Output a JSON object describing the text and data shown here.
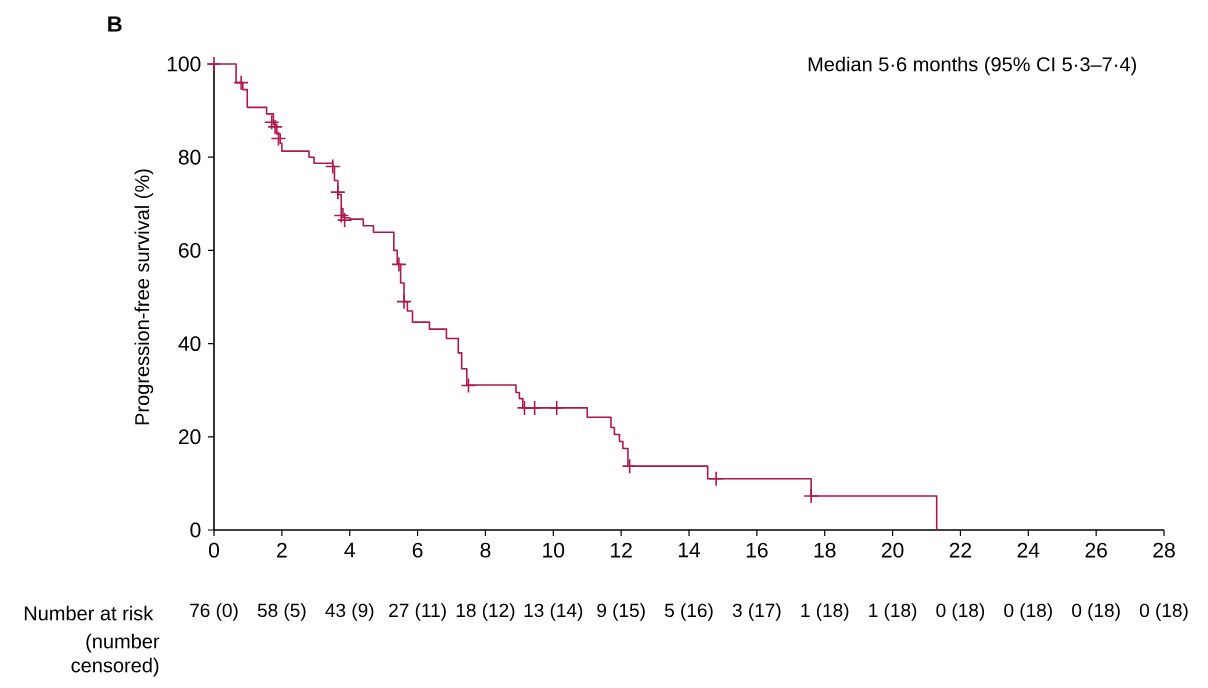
{
  "chart_data": {
    "type": "step",
    "title": "B",
    "ylabel": "Progression-free survival (%)",
    "annotations": [
      "Median 5·6 months (95% CI 5·3–7·4)",
      "Number at risk",
      "(number censored)",
      "76 (0)",
      "58 (5)",
      "43 (9)",
      "27 (11)",
      "18 (12)",
      "13 (14)",
      "9 (15)",
      "5 (16)",
      "3 (17)",
      "1 (18)",
      "1 (18)",
      "0 (18)",
      "0 (18)",
      "0 (18)",
      "0 (18)"
    ],
    "series": [
      {
        "color": "#b0174f",
        "x": [
          0,
          0.65,
          0.85,
          0.98,
          1.55,
          1.75,
          1.85,
          1.95,
          2.0,
          2.8,
          2.95,
          3.5,
          3.55,
          3.65,
          3.75,
          3.8,
          4.0,
          4.4,
          4.7,
          5.3,
          5.4,
          5.5,
          5.6,
          5.7,
          5.85,
          6.35,
          6.85,
          7.2,
          7.3,
          7.45,
          8.9,
          9.0,
          9.1,
          11.0,
          11.7,
          11.8,
          11.95,
          12.05,
          12.2,
          14.55,
          17.6,
          21.3
        ],
        "values": [
          100,
          96,
          94.5,
          90.7,
          89.3,
          87,
          85,
          83,
          81.3,
          80,
          78.7,
          78,
          75,
          72,
          69,
          67,
          66.7,
          65.3,
          63.9,
          60,
          57,
          53,
          49,
          47,
          44.6,
          43.1,
          41.1,
          38,
          34.6,
          31.1,
          29.5,
          28.2,
          26.2,
          24.2,
          22,
          20.5,
          19,
          17.5,
          13.7,
          11,
          7.3,
          0
        ]
      },
      {
        "type": "scatter",
        "marker": "cross",
        "color": "#b0174f",
        "x": [
          0,
          0.8,
          1.7,
          1.8,
          1.9,
          3.5,
          3.65,
          3.75,
          3.85,
          5.45,
          5.6,
          7.5,
          9.15,
          9.45,
          10.1,
          12.25,
          14.8,
          17.6
        ],
        "values": [
          100,
          96,
          87.5,
          86.5,
          84,
          78,
          72.5,
          67.5,
          66.5,
          57,
          49,
          31,
          26.2,
          26.2,
          26.2,
          13.7,
          11,
          7.3
        ]
      }
    ],
    "xlim": [
      0,
      28
    ],
    "xticks": [
      0,
      2,
      4,
      6,
      8,
      10,
      12,
      14,
      16,
      18,
      20,
      22,
      24,
      26,
      28
    ],
    "ylim": [
      0,
      100
    ],
    "yticks": [
      0,
      20,
      40,
      60,
      80,
      100
    ]
  }
}
